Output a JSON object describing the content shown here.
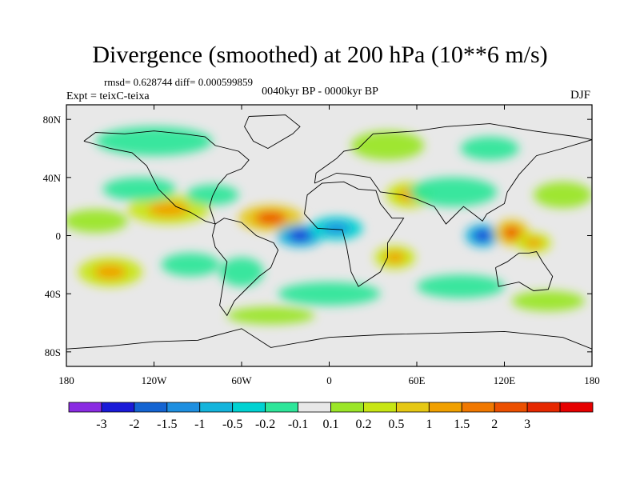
{
  "title": "Divergence (smoothed) at 200 hPa (10**6 m/s)",
  "stats": "rmsd= 0.628744 diff= 0.000599859",
  "period": "0040kyr BP - 0000kyr BP",
  "experiment": "Expt = teixC-teixa",
  "season": "DJF",
  "map": {
    "projection": "cylindrical-equidistant",
    "lon_range": [
      -180,
      180
    ],
    "lat_range": [
      -90,
      90
    ],
    "x_ticks": [
      {
        "lon": -180,
        "label": "180"
      },
      {
        "lon": -120,
        "label": "120W"
      },
      {
        "lon": -60,
        "label": "60W"
      },
      {
        "lon": 0,
        "label": "0"
      },
      {
        "lon": 60,
        "label": "60E"
      },
      {
        "lon": 120,
        "label": "120E"
      },
      {
        "lon": 180,
        "label": "180"
      }
    ],
    "y_ticks": [
      {
        "lat": 80,
        "label": "80N"
      },
      {
        "lat": 40,
        "label": "40N"
      },
      {
        "lat": 0,
        "label": "0"
      },
      {
        "lat": -40,
        "label": "40S"
      },
      {
        "lat": -80,
        "label": "80S"
      }
    ],
    "background_color": "#e8e8e8",
    "coastline_color": "#000000",
    "features": [
      {
        "lon": -110,
        "lat": 18,
        "rx": 28,
        "ry": 10,
        "level": 2
      },
      {
        "lon": -160,
        "lat": 10,
        "rx": 22,
        "ry": 8,
        "level": 1
      },
      {
        "lon": -40,
        "lat": 12,
        "rx": 22,
        "ry": 9,
        "level": 3
      },
      {
        "lon": -20,
        "lat": 0,
        "rx": 16,
        "ry": 8,
        "level": -3
      },
      {
        "lon": 5,
        "lat": 5,
        "rx": 18,
        "ry": 8,
        "level": -2
      },
      {
        "lon": 105,
        "lat": 0,
        "rx": 12,
        "ry": 8,
        "level": -3
      },
      {
        "lon": 125,
        "lat": 2,
        "rx": 12,
        "ry": 9,
        "level": 3
      },
      {
        "lon": 140,
        "lat": -5,
        "rx": 12,
        "ry": 7,
        "level": 2
      },
      {
        "lon": 55,
        "lat": 28,
        "rx": 16,
        "ry": 9,
        "level": 2
      },
      {
        "lon": 45,
        "lat": -15,
        "rx": 14,
        "ry": 8,
        "level": 2
      },
      {
        "lon": -150,
        "lat": -25,
        "rx": 22,
        "ry": 10,
        "level": 2
      },
      {
        "lon": -95,
        "lat": -20,
        "rx": 20,
        "ry": 8,
        "level": -1
      },
      {
        "lon": -60,
        "lat": -25,
        "rx": 15,
        "ry": 10,
        "level": -1
      },
      {
        "lon": -80,
        "lat": 28,
        "rx": 18,
        "ry": 7,
        "level": -1
      },
      {
        "lon": -130,
        "lat": 32,
        "rx": 25,
        "ry": 8,
        "level": -1
      },
      {
        "lon": 85,
        "lat": 30,
        "rx": 30,
        "ry": 10,
        "level": -1
      },
      {
        "lon": 160,
        "lat": 28,
        "rx": 20,
        "ry": 9,
        "level": 1
      },
      {
        "lon": -120,
        "lat": 65,
        "rx": 40,
        "ry": 10,
        "level": -1
      },
      {
        "lon": 40,
        "lat": 62,
        "rx": 25,
        "ry": 10,
        "level": 1
      },
      {
        "lon": 110,
        "lat": 60,
        "rx": 20,
        "ry": 8,
        "level": -1
      },
      {
        "lon": 0,
        "lat": -40,
        "rx": 35,
        "ry": 8,
        "level": -1
      },
      {
        "lon": 90,
        "lat": -35,
        "rx": 30,
        "ry": 8,
        "level": -1
      },
      {
        "lon": 150,
        "lat": -45,
        "rx": 25,
        "ry": 7,
        "level": 1
      },
      {
        "lon": -40,
        "lat": -55,
        "rx": 30,
        "ry": 6,
        "level": 1
      }
    ],
    "coastlines": [
      {
        "name": "north-america",
        "points": [
          [
            -168,
            65
          ],
          [
            -150,
            60
          ],
          [
            -135,
            57
          ],
          [
            -125,
            48
          ],
          [
            -117,
            32
          ],
          [
            -105,
            20
          ],
          [
            -95,
            16
          ],
          [
            -85,
            10
          ],
          [
            -78,
            8
          ],
          [
            -82,
            20
          ],
          [
            -80,
            27
          ],
          [
            -76,
            35
          ],
          [
            -70,
            42
          ],
          [
            -60,
            46
          ],
          [
            -55,
            52
          ],
          [
            -62,
            58
          ],
          [
            -78,
            62
          ],
          [
            -85,
            68
          ],
          [
            -100,
            70
          ],
          [
            -120,
            72
          ],
          [
            -140,
            70
          ],
          [
            -160,
            71
          ],
          [
            -168,
            65
          ]
        ]
      },
      {
        "name": "south-america",
        "points": [
          [
            -78,
            8
          ],
          [
            -72,
            12
          ],
          [
            -60,
            9
          ],
          [
            -50,
            0
          ],
          [
            -38,
            -5
          ],
          [
            -35,
            -10
          ],
          [
            -40,
            -22
          ],
          [
            -48,
            -28
          ],
          [
            -58,
            -38
          ],
          [
            -65,
            -45
          ],
          [
            -70,
            -55
          ],
          [
            -75,
            -48
          ],
          [
            -72,
            -30
          ],
          [
            -70,
            -18
          ],
          [
            -78,
            -8
          ],
          [
            -80,
            0
          ],
          [
            -78,
            8
          ]
        ]
      },
      {
        "name": "greenland",
        "points": [
          [
            -55,
            82
          ],
          [
            -30,
            83
          ],
          [
            -20,
            75
          ],
          [
            -25,
            70
          ],
          [
            -42,
            60
          ],
          [
            -52,
            65
          ],
          [
            -58,
            75
          ],
          [
            -55,
            82
          ]
        ]
      },
      {
        "name": "africa",
        "points": [
          [
            -17,
            15
          ],
          [
            -15,
            28
          ],
          [
            -5,
            36
          ],
          [
            10,
            37
          ],
          [
            20,
            32
          ],
          [
            32,
            31
          ],
          [
            35,
            22
          ],
          [
            43,
            12
          ],
          [
            51,
            12
          ],
          [
            40,
            -5
          ],
          [
            40,
            -15
          ],
          [
            35,
            -25
          ],
          [
            20,
            -35
          ],
          [
            15,
            -25
          ],
          [
            12,
            -8
          ],
          [
            9,
            4
          ],
          [
            -8,
            5
          ],
          [
            -17,
            15
          ]
        ]
      },
      {
        "name": "eurasia",
        "points": [
          [
            -10,
            36
          ],
          [
            -9,
            43
          ],
          [
            -2,
            48
          ],
          [
            5,
            53
          ],
          [
            10,
            58
          ],
          [
            20,
            60
          ],
          [
            30,
            70
          ],
          [
            60,
            72
          ],
          [
            80,
            75
          ],
          [
            110,
            77
          ],
          [
            140,
            72
          ],
          [
            170,
            68
          ],
          [
            180,
            66
          ],
          [
            160,
            60
          ],
          [
            142,
            55
          ],
          [
            130,
            42
          ],
          [
            122,
            30
          ],
          [
            120,
            22
          ],
          [
            108,
            15
          ],
          [
            105,
            10
          ],
          [
            100,
            14
          ],
          [
            92,
            20
          ],
          [
            80,
            8
          ],
          [
            72,
            20
          ],
          [
            60,
            25
          ],
          [
            50,
            28
          ],
          [
            35,
            30
          ],
          [
            28,
            40
          ],
          [
            15,
            42
          ],
          [
            5,
            43
          ],
          [
            -10,
            36
          ]
        ]
      },
      {
        "name": "australia",
        "points": [
          [
            114,
            -22
          ],
          [
            122,
            -18
          ],
          [
            130,
            -12
          ],
          [
            137,
            -12
          ],
          [
            142,
            -11
          ],
          [
            146,
            -18
          ],
          [
            153,
            -28
          ],
          [
            150,
            -37
          ],
          [
            140,
            -38
          ],
          [
            130,
            -32
          ],
          [
            116,
            -35
          ],
          [
            114,
            -22
          ]
        ]
      },
      {
        "name": "antarctica",
        "points": [
          [
            -180,
            -78
          ],
          [
            -150,
            -76
          ],
          [
            -120,
            -73
          ],
          [
            -90,
            -72
          ],
          [
            -60,
            -64
          ],
          [
            -40,
            -77
          ],
          [
            0,
            -70
          ],
          [
            40,
            -68
          ],
          [
            80,
            -67
          ],
          [
            120,
            -66
          ],
          [
            160,
            -70
          ],
          [
            180,
            -78
          ]
        ]
      }
    ]
  },
  "colorbar": {
    "colors": [
      "#8a2be2",
      "#1a1ad8",
      "#1464d2",
      "#1e8fe0",
      "#14b4dc",
      "#00d2d2",
      "#2ee69a",
      "#e8e8e8",
      "#9be628",
      "#c8e614",
      "#e6c814",
      "#f0a000",
      "#f07800",
      "#ec5000",
      "#e62800",
      "#e60000"
    ],
    "labels": [
      "-3",
      "-2",
      "-1.5",
      "-1",
      "-0.5",
      "-0.2",
      "-0.1",
      "0.1",
      "0.2",
      "0.5",
      "1",
      "1.5",
      "2",
      "3"
    ]
  }
}
